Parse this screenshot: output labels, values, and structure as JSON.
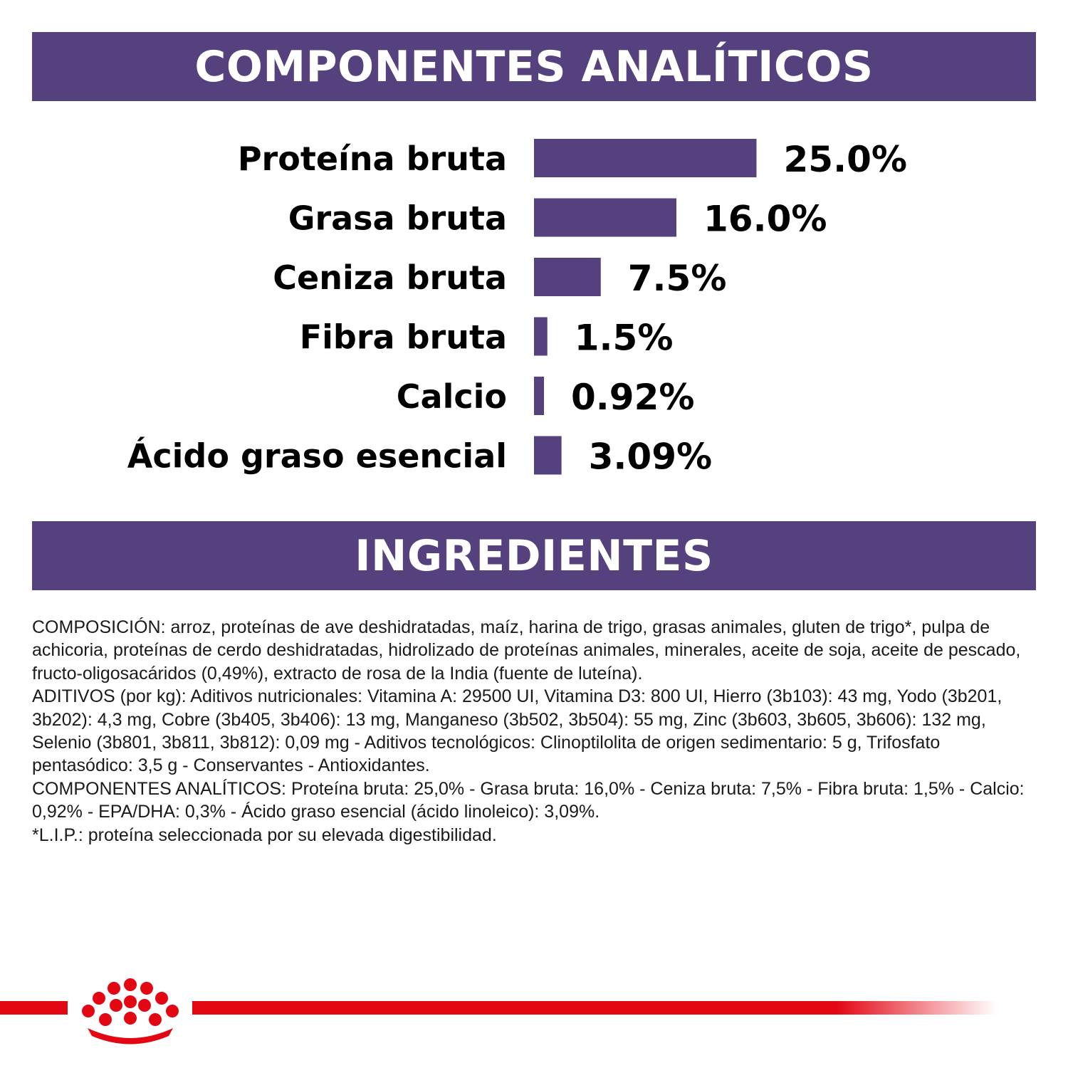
{
  "colors": {
    "banner": "#56417f",
    "bar": "#56417f",
    "brand_red": "#e30613",
    "label": "#000000"
  },
  "section_analytics": {
    "title": "COMPONENTES ANALÍTICOS"
  },
  "section_ingredients": {
    "title": "INGREDIENTES"
  },
  "chart_data": {
    "type": "bar",
    "orientation": "horizontal",
    "title": "COMPONENTES ANALÍTICOS",
    "categories": [
      "Proteína bruta",
      "Grasa bruta",
      "Ceniza bruta",
      "Fibra bruta",
      "Calcio",
      "Ácido graso esencial"
    ],
    "values": [
      25.0,
      16.0,
      7.5,
      1.5,
      0.92,
      3.09
    ],
    "value_labels": [
      "25.0%",
      "16.0%",
      "7.5%",
      "1.5%",
      "0.92%",
      "3.09%"
    ],
    "unit": "%",
    "grid": false,
    "legend": "none"
  },
  "ingredients": {
    "paragraphs": [
      "COMPOSICIÓN: arroz, proteínas de ave deshidratadas, maíz, harina de trigo, grasas animales, gluten de trigo*, pulpa de achicoria, proteínas de cerdo deshidratadas, hidrolizado de proteínas animales, minerales, aceite de soja, aceite de pescado, fructo-oligosacáridos (0,49%), extracto de rosa de la India (fuente de luteína).",
      "ADITIVOS (por kg): Aditivos nutricionales: Vitamina A: 29500 UI, Vitamina D3: 800 UI, Hierro (3b103): 43 mg, Yodo (3b201, 3b202): 4,3 mg, Cobre (3b405, 3b406): 13 mg, Manganeso (3b502, 3b504): 55 mg, Zinc (3b603, 3b605, 3b606): 132 mg, Selenio (3b801, 3b811, 3b812): 0,09 mg - Aditivos tecnológicos: Clinoptilolita de origen sedimentario: 5 g, Trifosfato pentasódico: 3,5 g - Conservantes - Antioxidantes.",
      "COMPONENTES ANALÍTICOS: Proteína bruta: 25,0% - Grasa bruta: 16,0% - Ceniza bruta: 7,5% - Fibra bruta: 1,5% - Calcio: 0,92% - EPA/DHA: 0,3% - Ácido graso esencial (ácido linoleico): 3,09%.",
      "*L.I.P.: proteína seleccionada por su elevada digestibilidad."
    ]
  },
  "footer": {
    "logo_icon": "royal-canin-crown-icon"
  }
}
